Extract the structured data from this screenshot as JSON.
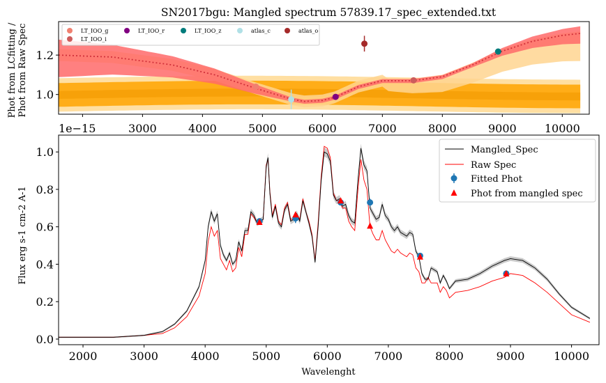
{
  "chart_data": [
    {
      "type": "line",
      "title": "SN2017bgu: Mangled spectrum 57839.17_spec_extended.txt",
      "ylabel": [
        "Phot from LCfitting /",
        "Phot from Raw Spec"
      ],
      "xlim": [
        1600,
        10450
      ],
      "ylim": [
        0.9,
        1.37
      ],
      "xticks": [
        2000,
        3000,
        4000,
        5000,
        6000,
        7000,
        8000,
        9000,
        10000
      ],
      "yticks": [
        1.0,
        1.2
      ],
      "offset_label": "1e−15",
      "grid": false,
      "legend_position": "top-left",
      "legend": [
        {
          "name": "LT_IOO_g",
          "color": "#f08070"
        },
        {
          "name": "LT_IOO_r",
          "color": "#800080"
        },
        {
          "name": "LT_IOO_z",
          "color": "#007b7b"
        },
        {
          "name": "atlas_c",
          "color": "#b0e0e6"
        },
        {
          "name": "atlas_o",
          "color": "#a52a2a"
        },
        {
          "name": "LT_IOO_i",
          "color": "#cd5c5c"
        }
      ],
      "ratio_curve": {
        "x": [
          1600,
          2500,
          3500,
          4200,
          4900,
          5500,
          5700,
          6000,
          6200,
          6600,
          7000,
          7500,
          8000,
          8500,
          9000,
          9500,
          10000,
          10300
        ],
        "y": [
          1.2,
          1.19,
          1.15,
          1.1,
          1.03,
          0.975,
          0.965,
          0.97,
          0.985,
          1.04,
          1.07,
          1.07,
          1.09,
          1.15,
          1.22,
          1.27,
          1.3,
          1.31
        ]
      },
      "points": [
        {
          "name": "atlas_c",
          "x": 5480,
          "y": 0.975,
          "err": 0.05,
          "color": "#b0e0e6"
        },
        {
          "name": "LT_IOO_r",
          "x": 6220,
          "y": 0.988,
          "err": 0.0,
          "color": "#800080"
        },
        {
          "name": "atlas_o",
          "x": 6700,
          "y": 1.258,
          "err": 0.04,
          "color": "#a52a2a"
        },
        {
          "name": "LT_IOO_i",
          "x": 7520,
          "y": 1.072,
          "err": 0.0,
          "color": "#cd5c5c"
        },
        {
          "name": "LT_IOO_z",
          "x": 8930,
          "y": 1.218,
          "err": 0.0,
          "color": "#007b7b"
        },
        {
          "name": "LT_IOO_g",
          "x": 4890,
          "y": 1.04,
          "err": 0.0,
          "color": "#f08070"
        }
      ]
    },
    {
      "type": "line",
      "title": "",
      "xlabel": "Wavelenght",
      "ylabel": "Flux erg s-1 cm-2 A-1",
      "xlim": [
        1600,
        10450
      ],
      "ylim": [
        -0.03,
        1.09
      ],
      "xticks": [
        2000,
        3000,
        4000,
        5000,
        6000,
        7000,
        8000,
        9000,
        10000
      ],
      "yticks": [
        0.0,
        0.2,
        0.4,
        0.6,
        0.8,
        1.0
      ],
      "grid": false,
      "legend_position": "top-right",
      "legend": [
        {
          "name": "Mangled_Spec",
          "color": "#000000",
          "marker": "line"
        },
        {
          "name": "Raw Spec",
          "color": "#ff0000",
          "marker": "line"
        },
        {
          "name": "Fitted Phot",
          "color": "#1f77b4",
          "marker": "errorbar-dot"
        },
        {
          "name": "Phot from mangled spec",
          "color": "#ff0000",
          "marker": "triangle"
        }
      ],
      "series": [
        {
          "name": "Mangled_Spec",
          "x": [
            1600,
            2500,
            3000,
            3300,
            3500,
            3700,
            3900,
            4000,
            4050,
            4100,
            4150,
            4200,
            4250,
            4300,
            4350,
            4400,
            4450,
            4500,
            4550,
            4600,
            4650,
            4700,
            4750,
            4800,
            4850,
            4900,
            4950,
            5000,
            5030,
            5060,
            5100,
            5150,
            5200,
            5250,
            5300,
            5350,
            5400,
            5450,
            5500,
            5550,
            5600,
            5650,
            5700,
            5750,
            5800,
            5850,
            5900,
            5950,
            6000,
            6050,
            6100,
            6150,
            6200,
            6250,
            6300,
            6350,
            6400,
            6450,
            6500,
            6550,
            6600,
            6650,
            6700,
            6750,
            6800,
            6850,
            6900,
            6950,
            7000,
            7050,
            7100,
            7150,
            7200,
            7250,
            7300,
            7350,
            7400,
            7450,
            7500,
            7550,
            7600,
            7650,
            7700,
            7750,
            7800,
            7850,
            7900,
            7950,
            8000,
            8100,
            8300,
            8500,
            8700,
            8900,
            9000,
            9200,
            9400,
            9600,
            9800,
            10000,
            10300
          ],
          "y": [
            0.01,
            0.01,
            0.02,
            0.04,
            0.08,
            0.15,
            0.28,
            0.42,
            0.6,
            0.68,
            0.63,
            0.67,
            0.5,
            0.45,
            0.42,
            0.46,
            0.4,
            0.42,
            0.52,
            0.47,
            0.58,
            0.58,
            0.68,
            0.66,
            0.62,
            0.63,
            0.64,
            0.92,
            0.97,
            0.78,
            0.65,
            0.71,
            0.62,
            0.6,
            0.69,
            0.72,
            0.63,
            0.64,
            0.67,
            0.63,
            0.74,
            0.68,
            0.62,
            0.55,
            0.41,
            0.6,
            0.85,
            1.0,
            0.99,
            0.95,
            0.77,
            0.74,
            0.75,
            0.71,
            0.72,
            0.66,
            0.63,
            0.62,
            0.84,
            1.02,
            0.93,
            0.9,
            0.7,
            0.67,
            0.64,
            0.65,
            0.72,
            0.66,
            0.64,
            0.6,
            0.58,
            0.6,
            0.57,
            0.56,
            0.55,
            0.57,
            0.56,
            0.47,
            0.44,
            0.35,
            0.32,
            0.32,
            0.38,
            0.37,
            0.36,
            0.3,
            0.34,
            0.31,
            0.27,
            0.31,
            0.32,
            0.35,
            0.39,
            0.42,
            0.43,
            0.42,
            0.38,
            0.32,
            0.24,
            0.17,
            0.11
          ]
        },
        {
          "name": "Raw Spec",
          "x": [
            1600,
            2500,
            3000,
            3300,
            3500,
            3700,
            3900,
            4000,
            4050,
            4100,
            4150,
            4200,
            4250,
            4300,
            4350,
            4400,
            4450,
            4500,
            4550,
            4600,
            4650,
            4700,
            4750,
            4800,
            4850,
            4900,
            4950,
            5000,
            5030,
            5060,
            5100,
            5150,
            5200,
            5250,
            5300,
            5350,
            5400,
            5450,
            5500,
            5550,
            5600,
            5650,
            5700,
            5750,
            5800,
            5850,
            5900,
            5950,
            6000,
            6050,
            6100,
            6150,
            6200,
            6250,
            6300,
            6350,
            6400,
            6450,
            6500,
            6550,
            6600,
            6650,
            6700,
            6750,
            6800,
            6850,
            6900,
            6950,
            7000,
            7050,
            7100,
            7150,
            7200,
            7250,
            7300,
            7350,
            7400,
            7450,
            7500,
            7550,
            7600,
            7650,
            7700,
            7750,
            7800,
            7850,
            7900,
            7950,
            8000,
            8100,
            8300,
            8500,
            8700,
            8900,
            9000,
            9200,
            9400,
            9600,
            9800,
            10000,
            10300
          ],
          "y": [
            0.01,
            0.01,
            0.02,
            0.03,
            0.06,
            0.12,
            0.23,
            0.35,
            0.52,
            0.6,
            0.55,
            0.58,
            0.43,
            0.4,
            0.37,
            0.42,
            0.36,
            0.38,
            0.49,
            0.44,
            0.56,
            0.56,
            0.67,
            0.65,
            0.62,
            0.62,
            0.64,
            0.93,
            0.96,
            0.79,
            0.66,
            0.72,
            0.63,
            0.61,
            0.7,
            0.73,
            0.64,
            0.64,
            0.67,
            0.64,
            0.75,
            0.68,
            0.63,
            0.56,
            0.42,
            0.62,
            0.87,
            1.03,
            1.02,
            0.97,
            0.78,
            0.74,
            0.74,
            0.7,
            0.7,
            0.63,
            0.6,
            0.58,
            0.79,
            0.96,
            0.85,
            0.8,
            0.6,
            0.56,
            0.53,
            0.53,
            0.58,
            0.53,
            0.5,
            0.47,
            0.46,
            0.48,
            0.46,
            0.45,
            0.44,
            0.46,
            0.45,
            0.38,
            0.36,
            0.3,
            0.3,
            0.33,
            0.3,
            0.3,
            0.3,
            0.25,
            0.28,
            0.26,
            0.22,
            0.25,
            0.26,
            0.28,
            0.31,
            0.33,
            0.35,
            0.34,
            0.3,
            0.25,
            0.19,
            0.13,
            0.09
          ]
        }
      ],
      "fitted_phot": [
        {
          "x": 4890,
          "y": 0.63,
          "err": 0.015
        },
        {
          "x": 5480,
          "y": 0.645,
          "err": 0.025
        },
        {
          "x": 6220,
          "y": 0.73,
          "err": 0.015
        },
        {
          "x": 6700,
          "y": 0.73,
          "err": 0.02
        },
        {
          "x": 7520,
          "y": 0.445,
          "err": 0.01
        },
        {
          "x": 8930,
          "y": 0.35,
          "err": 0.008
        }
      ],
      "phot_from_mangled_spec": [
        {
          "x": 4890,
          "y": 0.625
        },
        {
          "x": 5480,
          "y": 0.665
        },
        {
          "x": 6220,
          "y": 0.74
        },
        {
          "x": 6700,
          "y": 0.605
        },
        {
          "x": 7520,
          "y": 0.44
        },
        {
          "x": 8930,
          "y": 0.35
        }
      ]
    }
  ]
}
